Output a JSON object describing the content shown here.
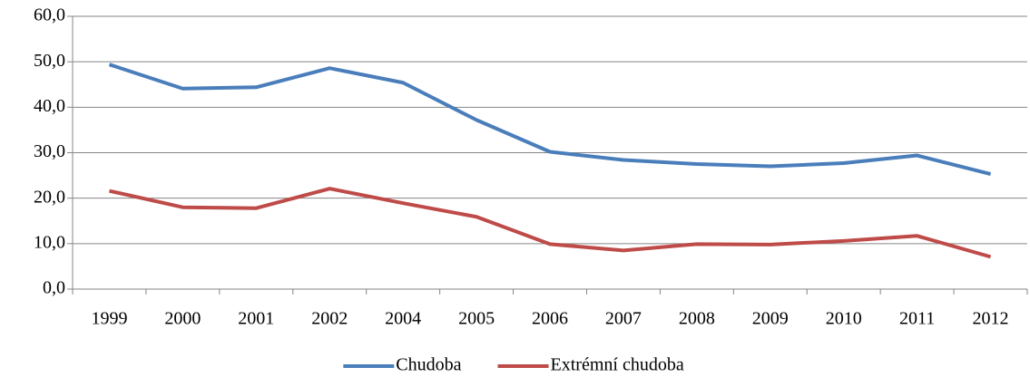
{
  "chart_data": {
    "type": "line",
    "categories": [
      "1999",
      "2000",
      "2001",
      "2002",
      "2004",
      "2005",
      "2006",
      "2007",
      "2008",
      "2009",
      "2010",
      "2011",
      "2012"
    ],
    "series": [
      {
        "name": "Chudoba",
        "color": "#4a7ebb",
        "values": [
          49.4,
          44.1,
          44.4,
          48.6,
          45.4,
          37.2,
          30.2,
          28.4,
          27.5,
          27.0,
          27.7,
          29.4,
          25.3
        ]
      },
      {
        "name": "Extrémní chudoba",
        "color": "#be4b48",
        "values": [
          21.6,
          18.0,
          17.8,
          22.1,
          18.9,
          15.9,
          9.9,
          8.5,
          9.9,
          9.8,
          10.6,
          11.7,
          7.1
        ]
      }
    ],
    "ylim": [
      0,
      60
    ],
    "yticks": [
      {
        "value": 0,
        "label": "0,0"
      },
      {
        "value": 10,
        "label": "10,0"
      },
      {
        "value": 20,
        "label": "20,0"
      },
      {
        "value": 30,
        "label": "30,0"
      },
      {
        "value": 40,
        "label": "40,0"
      },
      {
        "value": 50,
        "label": "50,0"
      },
      {
        "value": 60,
        "label": "60,0"
      }
    ],
    "grid": true,
    "legend": "bottom"
  }
}
